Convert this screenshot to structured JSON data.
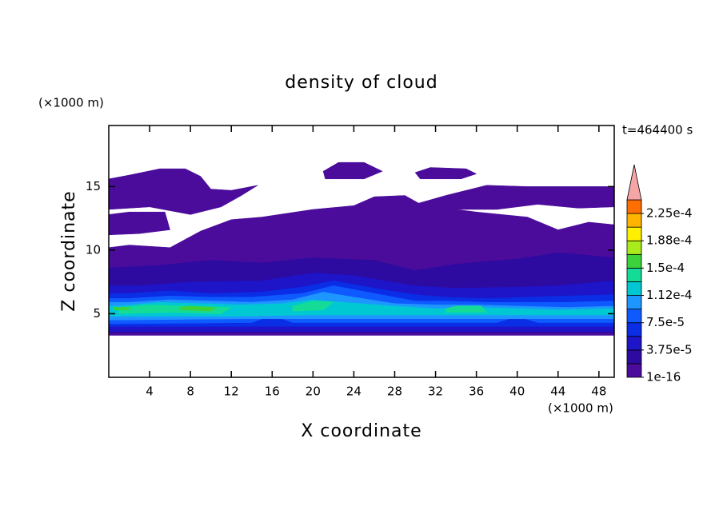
{
  "chart_data": {
    "type": "contour",
    "title": "density of cloud",
    "x_label": "X coordinate",
    "y_label": "Z coordinate",
    "x_unit": "(×1000 m)",
    "y_unit": "(×1000 m)",
    "time_label": "t=464400 s",
    "xlim": [
      0,
      49.5
    ],
    "ylim": [
      0,
      19.8
    ],
    "xticks": [
      4,
      8,
      12,
      16,
      20,
      24,
      28,
      32,
      36,
      40,
      44,
      48
    ],
    "yticks": [
      5,
      10,
      15
    ],
    "levels": [
      1e-16,
      1.875e-05,
      3.75e-05,
      5.625e-05,
      7.5e-05,
      9.375e-05,
      0.0001125,
      0.00013125,
      0.00015,
      0.00016875,
      0.0001875,
      0.00020625,
      0.000225,
      0.00024375
    ],
    "colors": [
      "#4b0c9c",
      "#2d0aa0",
      "#1e14c8",
      "#0a2de6",
      "#0f5aff",
      "#1e96ff",
      "#00c8d2",
      "#14dc96",
      "#3cd23c",
      "#aaeb1e",
      "#fff000",
      "#ffb400",
      "#ff6e00",
      "#ff2319"
    ],
    "extend_color": "#f4a5a5",
    "clim": [
      1e-16,
      0.00024375
    ],
    "cticks": [
      1e-16,
      {
        "value": 3.75e-05,
        "label": "3.75e-5"
      },
      {
        "value": 7.5e-05,
        "label": "7.5e-5"
      },
      {
        "value": 0.0001125,
        "label": "1.12e-4"
      },
      {
        "value": 0.00015,
        "label": "1.5e-4"
      },
      {
        "value": 0.0001875,
        "label": "1.88e-4"
      },
      {
        "value": 0.000225,
        "label": "2.25e-4"
      }
    ],
    "regions": [
      {
        "level": 1e-16,
        "points": [
          [
            0,
            3.3
          ],
          [
            49.5,
            3.3
          ],
          [
            49.5,
            12
          ],
          [
            47,
            12.2
          ],
          [
            44,
            11.6
          ],
          [
            41,
            12.6
          ],
          [
            36,
            13
          ],
          [
            33,
            13.3
          ],
          [
            31,
            13.4
          ],
          [
            29,
            14.3
          ],
          [
            26,
            14.2
          ],
          [
            24,
            13.5
          ],
          [
            20,
            13.2
          ],
          [
            15,
            12.6
          ],
          [
            12,
            12.4
          ],
          [
            9,
            11.5
          ],
          [
            6,
            10.2
          ],
          [
            2,
            10.4
          ],
          [
            0,
            10.2
          ]
        ]
      },
      {
        "level": 1e-16,
        "points": [
          [
            0,
            11.2
          ],
          [
            3,
            11.3
          ],
          [
            6,
            11.6
          ],
          [
            5.5,
            13
          ],
          [
            2,
            13
          ],
          [
            0,
            12.8
          ]
        ]
      },
      {
        "level": 1e-16,
        "points": [
          [
            0,
            13.2
          ],
          [
            4,
            13.4
          ],
          [
            8,
            12.8
          ],
          [
            11,
            13.4
          ],
          [
            13,
            14.3
          ],
          [
            14.6,
            15.1
          ],
          [
            12,
            14.7
          ],
          [
            10,
            14.8
          ],
          [
            9,
            15.8
          ],
          [
            7.5,
            16.4
          ],
          [
            5,
            16.4
          ],
          [
            2,
            15.9
          ],
          [
            0,
            15.6
          ]
        ]
      },
      {
        "level": 1e-16,
        "points": [
          [
            29.5,
            13.5
          ],
          [
            33,
            14.3
          ],
          [
            37,
            15.1
          ],
          [
            41,
            15
          ],
          [
            45,
            15
          ],
          [
            49.5,
            15
          ],
          [
            49.5,
            13.4
          ],
          [
            46,
            13.3
          ],
          [
            42,
            13.6
          ],
          [
            38,
            13.2
          ],
          [
            34,
            13.2
          ]
        ]
      },
      {
        "level": 1e-16,
        "points": [
          [
            21,
            16.2
          ],
          [
            22.5,
            16.9
          ],
          [
            25,
            16.9
          ],
          [
            26.8,
            16.2
          ],
          [
            25,
            15.6
          ],
          [
            21.2,
            15.6
          ]
        ]
      },
      {
        "level": 1e-16,
        "points": [
          [
            30,
            16.1
          ],
          [
            31.5,
            16.5
          ],
          [
            35,
            16.4
          ],
          [
            36,
            16
          ],
          [
            34.5,
            15.6
          ],
          [
            30.5,
            15.6
          ]
        ]
      },
      {
        "level": 1.875e-05,
        "points": [
          [
            0,
            3.5
          ],
          [
            49.5,
            3.5
          ],
          [
            49.5,
            9.4
          ],
          [
            44,
            9.8
          ],
          [
            40,
            9.3
          ],
          [
            34,
            8.9
          ],
          [
            30,
            8.4
          ],
          [
            26,
            9.2
          ],
          [
            20,
            9.4
          ],
          [
            15,
            9
          ],
          [
            10,
            9.2
          ],
          [
            5,
            8.8
          ],
          [
            0,
            8.6
          ]
        ]
      },
      {
        "level": 3.75e-05,
        "points": [
          [
            0,
            3.6
          ],
          [
            49.5,
            3.6
          ],
          [
            49.5,
            7.6
          ],
          [
            44,
            7.2
          ],
          [
            40,
            7.1
          ],
          [
            34,
            7
          ],
          [
            30,
            7.2
          ],
          [
            24,
            8
          ],
          [
            20,
            8.2
          ],
          [
            15,
            7.6
          ],
          [
            8,
            7.5
          ],
          [
            3,
            7.2
          ],
          [
            0,
            7.2
          ]
        ]
      },
      {
        "level": 5.625e-05,
        "points": [
          [
            0,
            4
          ],
          [
            49.5,
            4
          ],
          [
            49.5,
            6.5
          ],
          [
            45,
            6.4
          ],
          [
            41,
            6.3
          ],
          [
            37,
            6.2
          ],
          [
            33,
            6.3
          ],
          [
            30,
            6.5
          ],
          [
            26,
            7
          ],
          [
            22,
            7.6
          ],
          [
            19,
            7.1
          ],
          [
            15,
            6.7
          ],
          [
            10,
            6.6
          ],
          [
            6,
            6.8
          ],
          [
            2,
            6.6
          ],
          [
            0,
            6.6
          ]
        ]
      },
      {
        "level": 7.5e-05,
        "points": [
          [
            0,
            4.2
          ],
          [
            14,
            4.3
          ],
          [
            16,
            4.9
          ],
          [
            18,
            4.3
          ],
          [
            38,
            4.3
          ],
          [
            40,
            4.8
          ],
          [
            42,
            4.3
          ],
          [
            49.5,
            4.3
          ],
          [
            49.5,
            6
          ],
          [
            45,
            5.9
          ],
          [
            41,
            5.9
          ],
          [
            37,
            5.9
          ],
          [
            33,
            6
          ],
          [
            30,
            6
          ],
          [
            26,
            6.6
          ],
          [
            22,
            7.2
          ],
          [
            19,
            6.6
          ],
          [
            14,
            6.3
          ],
          [
            10,
            6.3
          ],
          [
            6,
            6.4
          ],
          [
            2,
            6.2
          ],
          [
            0,
            6.2
          ]
        ]
      },
      {
        "level": 9.375e-05,
        "points": [
          [
            0,
            4.5
          ],
          [
            13,
            4.6
          ],
          [
            19,
            4.6
          ],
          [
            37,
            4.6
          ],
          [
            43,
            4.6
          ],
          [
            49.5,
            4.6
          ],
          [
            49.5,
            5.6
          ],
          [
            45,
            5.5
          ],
          [
            40,
            5.6
          ],
          [
            36,
            5.7
          ],
          [
            32,
            5.7
          ],
          [
            28,
            5.8
          ],
          [
            24,
            6.3
          ],
          [
            21,
            6.7
          ],
          [
            18,
            6.1
          ],
          [
            14,
            5.9
          ],
          [
            10,
            6
          ],
          [
            6,
            6.1
          ],
          [
            2,
            5.9
          ],
          [
            0,
            5.9
          ]
        ]
      },
      {
        "level": 0.0001125,
        "points": [
          [
            0,
            4.8
          ],
          [
            12,
            4.8
          ],
          [
            20,
            4.9
          ],
          [
            36,
            4.9
          ],
          [
            44,
            4.9
          ],
          [
            49.5,
            4.9
          ],
          [
            49.5,
            5.4
          ],
          [
            44,
            5.3
          ],
          [
            40,
            5.4
          ],
          [
            36,
            5.5
          ],
          [
            32,
            5.4
          ],
          [
            28,
            5.6
          ],
          [
            23,
            5.9
          ],
          [
            20,
            6.1
          ],
          [
            17,
            5.8
          ],
          [
            13,
            5.7
          ],
          [
            9,
            5.8
          ],
          [
            5,
            5.9
          ],
          [
            1,
            5.6
          ],
          [
            0,
            5.6
          ]
        ]
      },
      {
        "level": 0.00013125,
        "points": [
          [
            1,
            5
          ],
          [
            6,
            5.1
          ],
          [
            11,
            5
          ],
          [
            12,
            5.5
          ],
          [
            8,
            5.6
          ],
          [
            4,
            5.7
          ],
          [
            1,
            5.5
          ]
        ]
      },
      {
        "level": 0.00013125,
        "points": [
          [
            33,
            5.1
          ],
          [
            37,
            5.1
          ],
          [
            36.5,
            5.6
          ],
          [
            34,
            5.6
          ],
          [
            33,
            5.4
          ]
        ]
      },
      {
        "level": 0.00013125,
        "points": [
          [
            18,
            5.2
          ],
          [
            21,
            5.3
          ],
          [
            22,
            5.9
          ],
          [
            20,
            6
          ],
          [
            18,
            5.6
          ]
        ]
      },
      {
        "level": 0.00015,
        "points": [
          [
            7,
            5.3
          ],
          [
            10,
            5.2
          ],
          [
            10.5,
            5.5
          ],
          [
            8,
            5.6
          ],
          [
            7,
            5.5
          ]
        ]
      },
      {
        "level": 0.00015,
        "points": [
          [
            0.5,
            5.3
          ],
          [
            2,
            5.3
          ],
          [
            2,
            5.5
          ],
          [
            0.5,
            5.5
          ]
        ]
      }
    ]
  }
}
